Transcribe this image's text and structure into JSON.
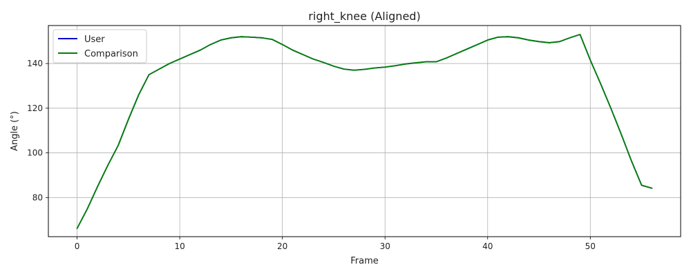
{
  "chart_data": {
    "type": "line",
    "title": "right_knee (Aligned)",
    "xlabel": "Frame",
    "ylabel": "Angle (°)",
    "xlim": [
      -2.8,
      58.8
    ],
    "ylim": [
      62.5,
      157.0
    ],
    "xticks": [
      0,
      10,
      20,
      30,
      40,
      50
    ],
    "yticks": [
      80,
      100,
      120,
      140
    ],
    "grid": true,
    "legend_position": "top-left",
    "x": [
      0,
      1,
      2,
      3,
      4,
      5,
      6,
      7,
      8,
      9,
      10,
      11,
      12,
      13,
      14,
      15,
      16,
      17,
      18,
      19,
      20,
      21,
      22,
      23,
      24,
      25,
      26,
      27,
      28,
      29,
      30,
      31,
      32,
      33,
      34,
      35,
      36,
      37,
      38,
      39,
      40,
      41,
      42,
      43,
      44,
      45,
      46,
      47,
      48,
      49,
      50,
      51,
      52,
      53,
      54,
      55,
      56
    ],
    "series": [
      {
        "name": "User",
        "color": "#0000cc",
        "values": [
          66.2,
          75.0,
          85.0,
          94.5,
          103.3,
          115.0,
          126.0,
          135.0,
          137.5,
          140.0,
          142.0,
          144.0,
          146.0,
          148.5,
          150.5,
          151.5,
          152.0,
          151.8,
          151.5,
          150.8,
          148.5,
          146.0,
          144.0,
          142.0,
          140.5,
          138.8,
          137.5,
          137.0,
          137.4,
          138.0,
          138.4,
          139.0,
          139.8,
          140.3,
          140.8,
          140.8,
          142.5,
          144.5,
          146.5,
          148.5,
          150.5,
          151.8,
          152.0,
          151.5,
          150.5,
          149.8,
          149.3,
          149.8,
          151.5,
          153.0,
          141.5,
          131.0,
          120.0,
          108.5,
          96.5,
          85.5,
          84.2
        ]
      },
      {
        "name": "Comparison",
        "color": "#008000",
        "values": [
          66.2,
          75.0,
          85.0,
          94.5,
          103.3,
          115.0,
          126.0,
          135.0,
          137.5,
          140.0,
          142.0,
          144.0,
          146.0,
          148.5,
          150.5,
          151.5,
          152.0,
          151.8,
          151.5,
          150.8,
          148.5,
          146.0,
          144.0,
          142.0,
          140.5,
          138.8,
          137.5,
          137.0,
          137.4,
          138.0,
          138.4,
          139.0,
          139.8,
          140.3,
          140.8,
          140.8,
          142.5,
          144.5,
          146.5,
          148.5,
          150.5,
          151.8,
          152.0,
          151.5,
          150.5,
          149.8,
          149.3,
          149.8,
          151.5,
          153.0,
          141.5,
          131.0,
          120.0,
          108.5,
          96.5,
          85.5,
          84.2
        ]
      }
    ]
  }
}
